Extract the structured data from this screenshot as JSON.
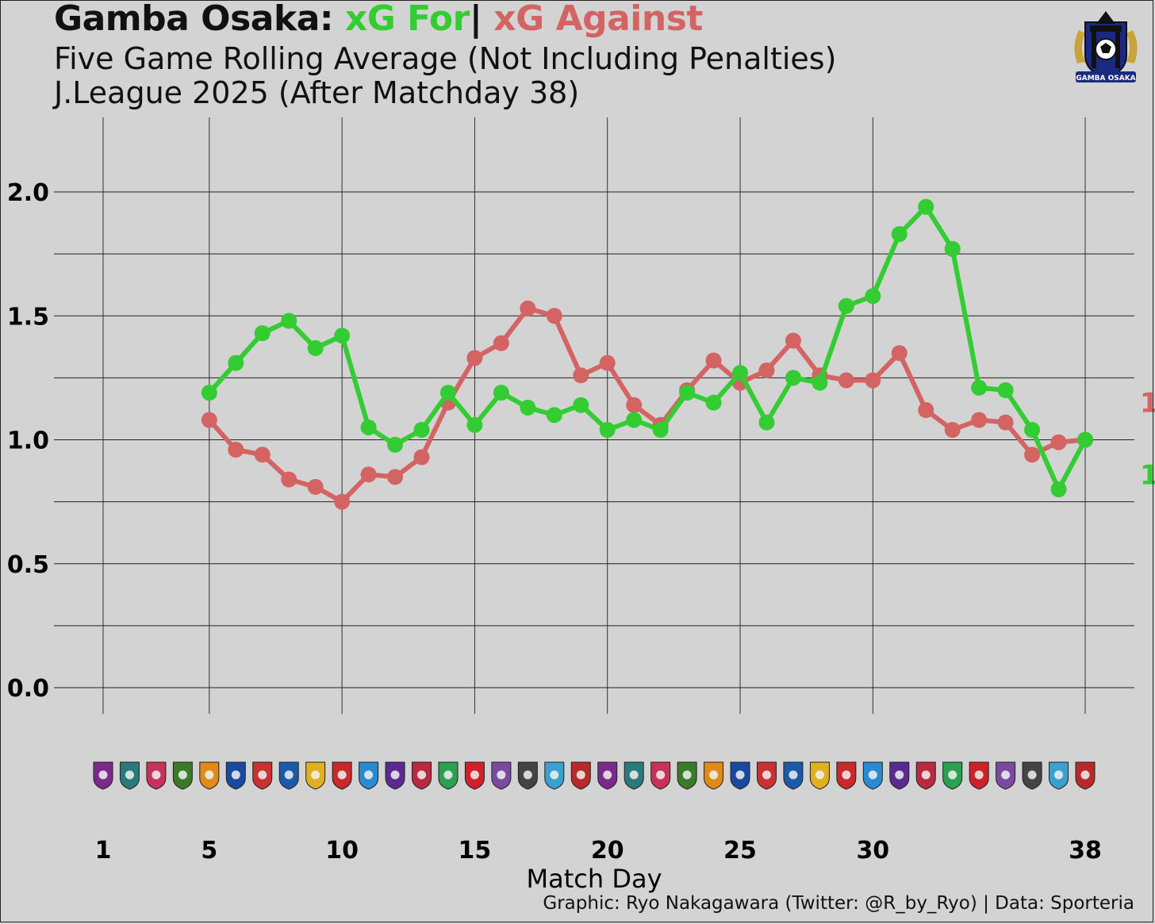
{
  "header": {
    "team": "Gamba Osaka:",
    "for_label": "xG For",
    "separator": "|",
    "against_label": "xG Against",
    "subtitle1": "Five Game Rolling Average (Not Including Penalties)",
    "subtitle2": "J.League 2025 (After Matchday 38)"
  },
  "crest": {
    "text": "GAMBA OSAKA",
    "icon": "gamba-osaka-crest-icon"
  },
  "footer": {
    "credit": "Graphic: Ryo Nakagawara (Twitter: @R_by_Ryo) | Data: Sporteria"
  },
  "colors": {
    "xg_for": "#33cc33",
    "xg_against": "#d46464",
    "background": "#d3d3d3",
    "grid": "#222222"
  },
  "chart_data": {
    "type": "line",
    "title": "Gamba Osaka: xG For | xG Against",
    "xlabel": "Match Day",
    "ylabel": "",
    "xlim": [
      1,
      38
    ],
    "ylim": [
      0,
      2.2
    ],
    "x_ticks": [
      1,
      5,
      10,
      15,
      20,
      25,
      30,
      38
    ],
    "y_ticks": [
      "0.0",
      "0.5",
      "1.0",
      "1.5",
      "2.0"
    ],
    "grid": true,
    "end_labels": {
      "xg_against": "1",
      "xg_for": "1"
    },
    "opponent_logos": [
      "cerezo-osaka-crest-icon",
      "avispa-fukuoka-crest-icon",
      "fc-machida-crest-icon",
      "tokyo-verdy-crest-icon",
      "shimizu-s-pulse-crest-icon",
      "yokohama-f-marinos-crest-icon",
      "albirex-niigata-crest-icon",
      "fc-machida-zelvia-crest-icon",
      "kashiwa-reysol-crest-icon",
      "nagoya-grampus-crest-icon",
      "yokohama-fc-crest-icon",
      "fc-tokyo-crest-icon",
      "kyoto-sanga-crest-icon",
      "shonan-bellmare-crest-icon",
      "urawa-reds-crest-icon",
      "sanfrecce-hiroshima-crest-icon",
      "vissel-kobe-crest-icon",
      "kawasaki-frontale-crest-icon",
      "kashima-antlers-crest-icon",
      "shimizu-s-pulse-crest-icon",
      "fc-tokyo-crest-icon",
      "kyoto-sanga-crest-icon",
      "cerezo-osaka-crest-icon",
      "kawasaki-frontale-crest-icon",
      "fc-machida-crest-icon",
      "sanfrecce-hiroshima-crest-icon",
      "fc-machida-zelvia-crest-icon",
      "yokohama-fc-crest-icon",
      "shonan-bellmare-crest-icon",
      "urawa-reds-crest-icon",
      "yokohama-f-marinos-crest-icon",
      "albirex-niigata-crest-icon",
      "kashima-antlers-crest-icon",
      "kashiwa-reysol-crest-icon",
      "nagoya-grampus-crest-icon",
      "vissel-kobe-crest-icon",
      "avispa-fukuoka-crest-icon",
      "tokyo-verdy-crest-icon"
    ],
    "series": [
      {
        "name": "xG For",
        "color": "#33cc33",
        "x": [
          5,
          6,
          7,
          8,
          9,
          10,
          11,
          12,
          13,
          14,
          15,
          16,
          17,
          18,
          19,
          20,
          21,
          22,
          23,
          24,
          25,
          26,
          27,
          28,
          29,
          30,
          31,
          32,
          33,
          34,
          35,
          36,
          37,
          38
        ],
        "values": [
          1.19,
          1.31,
          1.43,
          1.48,
          1.37,
          1.42,
          1.05,
          0.98,
          1.04,
          1.19,
          1.06,
          1.19,
          1.13,
          1.1,
          1.14,
          1.04,
          1.08,
          1.04,
          1.19,
          1.15,
          1.27,
          1.07,
          1.25,
          1.23,
          1.54,
          1.58,
          1.83,
          1.94,
          1.77,
          1.21,
          1.2,
          1.04,
          0.8,
          1.0
        ]
      },
      {
        "name": "xG Against",
        "color": "#d46464",
        "x": [
          5,
          6,
          7,
          8,
          9,
          10,
          11,
          12,
          13,
          14,
          15,
          16,
          17,
          18,
          19,
          20,
          21,
          22,
          23,
          24,
          25,
          26,
          27,
          28,
          29,
          30,
          31,
          32,
          33,
          34,
          35,
          36,
          37,
          38
        ],
        "values": [
          1.08,
          0.96,
          0.94,
          0.84,
          0.81,
          0.75,
          0.86,
          0.85,
          0.93,
          1.15,
          1.33,
          1.39,
          1.53,
          1.5,
          1.26,
          1.31,
          1.14,
          1.06,
          1.2,
          1.32,
          1.23,
          1.28,
          1.4,
          1.26,
          1.24,
          1.24,
          1.35,
          1.12,
          1.04,
          1.08,
          1.07,
          0.94,
          0.99,
          1.0
        ]
      }
    ]
  }
}
